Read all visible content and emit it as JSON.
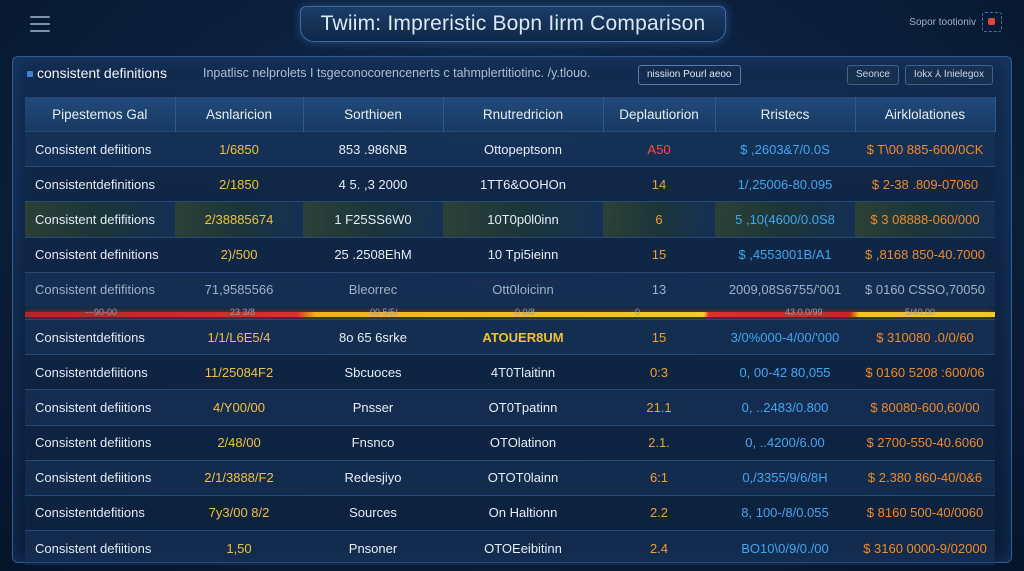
{
  "app": {
    "title": "Twiim: Impreristic Bopn Iirm Comparison",
    "top_right_label": "Sopor tootioniv"
  },
  "toolbar": {
    "title": "consistent definitions",
    "subtitle": "Inpatlisc nelprolets I tsgeconocorencenerts c tahmplertitiotinc. /y.tlouo.",
    "button": "nissiion Pourl aeoo",
    "right_buttons": [
      "Seonce",
      "Iokx ⅄ Inielegox"
    ]
  },
  "table": {
    "columns": [
      "Pipestemos Gal",
      "Asnlaricion",
      "Sorthioen",
      "Rnutredricion",
      "Deplautiorion",
      "Rristecs",
      "Airklolationes"
    ],
    "rows_top": [
      {
        "c": [
          "Consistent defiitions",
          "1/6850",
          "853 .986NB",
          "Ottopeptsonn",
          "A50",
          "$ ,2603&7/0.0S",
          "$ T\\00 885-600/0CK"
        ],
        "cls": "",
        "red": true
      },
      {
        "c": [
          "Consistentdefinitions",
          "2/1850",
          "4 5. ,3 2000",
          "1TT6&OOHOn",
          "14",
          "1/,25006-80.095",
          "$ 2-38 .809-07060"
        ],
        "cls": "",
        "red": false
      },
      {
        "c": [
          "Consistent defifitions",
          "2/38885674",
          "1 F25SS6W0",
          "10T0p0l0inn",
          "6",
          "5 ,10(4600/0.0S8",
          "$ 3 08888-060/000"
        ],
        "cls": "highlight",
        "red": false
      },
      {
        "c": [
          "Consistent  definitions",
          "2)/500",
          "25 .2508EhM",
          "10 Tpi5ieinn",
          "15",
          "$ ,4553001B/A1",
          "$ ,8168 850-40.7000"
        ],
        "cls": "",
        "red": false
      },
      {
        "c": [
          "Consistent defifitions",
          "71,9585566",
          "Bleorrec",
          "Ott0loicinn",
          "13",
          "2009,08S6755/'001",
          "$ 0160 CSSO,70050"
        ],
        "cls": "dim",
        "red": false
      }
    ],
    "separator_ticks": [
      "---90-00",
      "23 3/8",
      "00 5/5/",
      "0 0/8",
      "0",
      "43.0.0/99",
      "5/40.00"
    ],
    "rows_bottom": [
      {
        "c": [
          "Consistentdefitions",
          "1/1/L6E5/4",
          "8o 65 6srke",
          "ATOUER8UM",
          "15",
          "3/0%000-4/00/'000",
          "$ 310080 .0/0/60"
        ],
        "cls": "",
        "hot": true
      },
      {
        "c": [
          "Consistentdefiitions",
          "11/25084F2",
          "Sbcuoces",
          "4T0Tlaitinn",
          "0:3",
          "0, 00-42 80,055",
          "$ 0160 5208 :600/06"
        ],
        "cls": "",
        "hot": false
      },
      {
        "c": [
          "Consistent defiitions",
          "4/Y00/00",
          "Pnsser",
          "OT0Tpatinn",
          "21.1",
          "0, ..2483/0.800",
          "$ 80080-600,60/00"
        ],
        "cls": "",
        "hot": false
      },
      {
        "c": [
          "Consistent defiitions",
          "2/48/00",
          "Fnsnco",
          "OTOlatinon",
          "2.1.",
          "0, ..4200/6.00",
          "$ 2700-550-40.6060"
        ],
        "cls": "",
        "hot": false
      },
      {
        "c": [
          "Consistent defiitions",
          "2/1/3888/F2",
          "Redesjiyo",
          "OTOT0lainn",
          "6:1",
          "0,/3355/9/6/8H",
          "$ 2.380 860-40/0&6"
        ],
        "cls": "",
        "hot": false
      },
      {
        "c": [
          "Consistentdefitions",
          "7y3/00 8/2",
          "Sources",
          "On Haltionn",
          "2.2",
          "8, 100-/8/0.055",
          "$ 8160 500-40/0060"
        ],
        "cls": "",
        "hot": false
      },
      {
        "c": [
          "Consistent defiitions",
          "1,50",
          "Pnsoner",
          "OTOEeibitinn",
          "2.4",
          "BO10\\0/9/0./00",
          "$ 3160 0000-9/02000"
        ],
        "cls": "",
        "hot": false
      }
    ]
  },
  "colors": {
    "background": "#0b1f3c",
    "accent": "#3c7fd6",
    "amber": "#f1c040",
    "blue_value": "#3ea8f0",
    "orange_value": "#f08a2a",
    "alert_red": "#ff4a3a"
  },
  "icons": [
    "hamburger-icon",
    "grid-select-icon",
    "table-icon"
  ]
}
